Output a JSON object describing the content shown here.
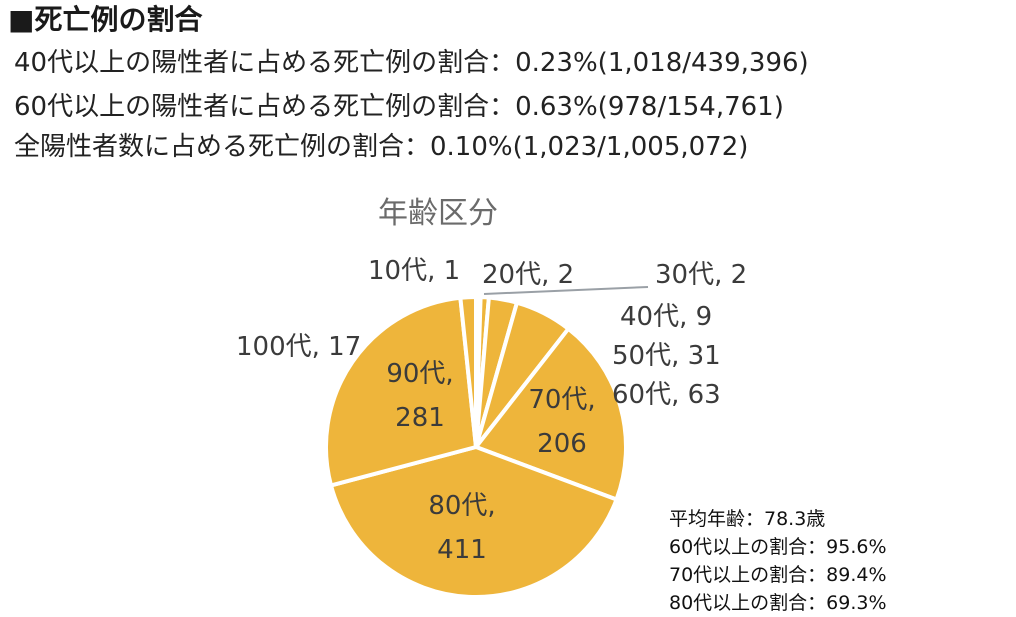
{
  "heading": "■死亡例の割合",
  "stats": [
    "40代以上の陽性者に占める死亡例の割合：0.23%(1,018/439,396)",
    "60代以上の陽性者に占める死亡例の割合：0.63%(978/154,761)",
    "全陽性者数に占める死亡例の割合：0.10%(1,023/1,005,072)"
  ],
  "summary": [
    "平均年齢：78.3歳",
    "60代以上の割合：95.6%",
    "70代以上の割合：89.4%",
    "80代以上の割合：69.3%"
  ],
  "chart_data": {
    "type": "pie",
    "title": "年齢区分",
    "categories": [
      "10代",
      "20代",
      "30代",
      "40代",
      "50代",
      "60代",
      "70代",
      "80代",
      "90代",
      "100代"
    ],
    "values": [
      1,
      2,
      2,
      9,
      31,
      63,
      206,
      411,
      281,
      17
    ],
    "labels": [
      "10代, 1",
      "20代, 2",
      "30代, 2",
      "40代, 9",
      "50代, 31",
      "60代, 63",
      "70代, 206",
      "80代, 411",
      "90代, 281",
      "100代, 17"
    ],
    "inner_labels": {
      "70代": [
        "70代,",
        "206"
      ],
      "80代": [
        "80代,",
        "411"
      ],
      "90代": [
        "90代,",
        "281"
      ]
    },
    "colors": {
      "light": "#dce6f2",
      "gold": "#eeb53b",
      "border": "#ffffff"
    }
  }
}
